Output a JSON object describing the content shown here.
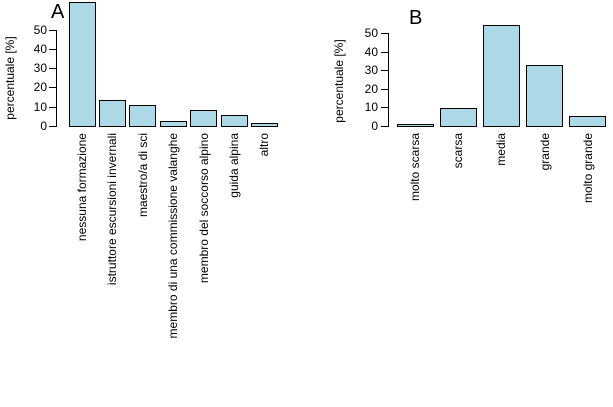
{
  "figure": {
    "background": "#ffffff",
    "description": "Two vertical bar charts (R-style barplot), panels A and B"
  },
  "colors": {
    "bar_fill": "#ADD8E6",
    "bar_border": "#000000",
    "text": "#000000"
  },
  "chart_data": [
    {
      "type": "bar",
      "panel_label": "A",
      "title": "",
      "xlabel": "",
      "ylabel": "percentuale [%]",
      "categories": [
        "nessuna formazione",
        "istruttore escursioni invernali",
        "maestro/a di sci",
        "membro di una commissione valanghe",
        "membro del soccorso alpino",
        "guida alpina",
        "altro"
      ],
      "values": [
        63.5,
        13,
        10.5,
        2,
        8,
        5,
        1
      ],
      "yticks": [
        0,
        10,
        20,
        30,
        40,
        50
      ],
      "ylim": [
        0,
        65
      ],
      "x_tick_rotation": 90,
      "grid": false,
      "legend": "none",
      "bar_color": "#ADD8E6"
    },
    {
      "type": "bar",
      "panel_label": "B",
      "title": "",
      "xlabel": "",
      "ylabel": "percentuale [%]",
      "categories": [
        "molto scarsa",
        "scarsa",
        "media",
        "grande",
        "molto grande"
      ],
      "values": [
        0.5,
        9,
        54,
        32.5,
        5
      ],
      "yticks": [
        0,
        10,
        20,
        30,
        40,
        50
      ],
      "ylim": [
        0,
        55
      ],
      "x_tick_rotation": 90,
      "grid": false,
      "legend": "none",
      "bar_color": "#ADD8E6"
    }
  ]
}
